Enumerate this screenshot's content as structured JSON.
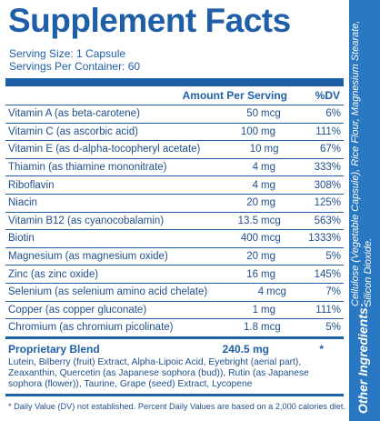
{
  "title": "Supplement Facts",
  "serving_size": "Serving Size: 1 Capsule",
  "servings_per_container": "Servings Per Container: 60",
  "headers": {
    "amount": "Amount Per Serving",
    "dv": "%DV"
  },
  "nutrients": [
    {
      "name": "Vitamin A (as beta-carotene)",
      "amount": "50",
      "unit": "mcg",
      "dv": "6%"
    },
    {
      "name": "Vitamin C (as ascorbic acid)",
      "amount": "100",
      "unit": "mg",
      "dv": "111%"
    },
    {
      "name": "Vitamin E (as d-alpha-tocopheryl acetate)",
      "amount": "10",
      "unit": "mg",
      "dv": "67%"
    },
    {
      "name": "Thiamin (as thiamine mononitrate)",
      "amount": "4",
      "unit": "mg",
      "dv": "333%"
    },
    {
      "name": "Riboflavin",
      "amount": "4",
      "unit": "mg",
      "dv": "308%"
    },
    {
      "name": "Niacin",
      "amount": "20",
      "unit": "mg",
      "dv": "125%"
    },
    {
      "name": "Vitamin B12 (as cyanocobalamin)",
      "amount": "13.5",
      "unit": "mcg",
      "dv": "563%"
    },
    {
      "name": "Biotin",
      "amount": "400",
      "unit": "mcg",
      "dv": "1333%"
    },
    {
      "name": "Magnesium (as magnesium oxide)",
      "amount": "20",
      "unit": "mg",
      "dv": "5%"
    },
    {
      "name": "Zinc (as zinc oxide)",
      "amount": "16",
      "unit": "mg",
      "dv": "145%"
    },
    {
      "name": "Selenium (as selenium amino acid chelate)",
      "amount": "4",
      "unit": "mcg",
      "dv": "7%"
    },
    {
      "name": "Copper (as copper gluconate)",
      "amount": "1",
      "unit": "mg",
      "dv": "111%"
    },
    {
      "name": "Chromium (as chromium picolinate)",
      "amount": "1.8",
      "unit": "mcg",
      "dv": "5%"
    }
  ],
  "proprietary": {
    "name": "Proprietary Blend",
    "amount": "240.5 mg",
    "dv": "*",
    "ingredients": "Lutein, Bilberry (fruit) Extract, Alpha-Lipoic Acid, Eyebright (aerial part), Zeaxanthin, Quercetin (as Japanese sophora (bud)), Rutin (as Japanese sophora (flower)), Taurine, Grape (seed) Extract, Lycopene"
  },
  "footnote": "* Daily Value (DV) not established.   Percent Daily Values are based on a 2,000 calories diet.",
  "other_ingredients": {
    "label": "Other Ingredients:",
    "text": "Cellulose (Vegetable Capsule), Rice Flour, Magnesium Stearate, Silicon Dioxide."
  },
  "colors": {
    "brand_blue": "#1f5fa8",
    "side_blue": "#2a78c2"
  }
}
